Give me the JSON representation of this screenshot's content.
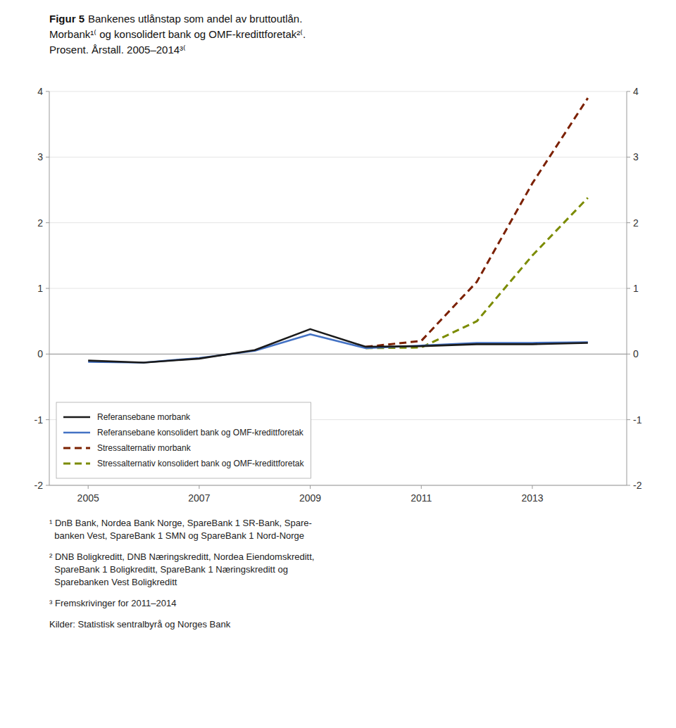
{
  "chart_data": {
    "type": "line",
    "title": "Figur 5",
    "subtitle": [
      "Bankenes utlånstap som andel av bruttoutlån.",
      "Morbank¹⁽ og konsolidert bank og OMF-kredittforetak²⁽.",
      "Prosent. Årstall. 2005–2014³⁽"
    ],
    "x": [
      2005,
      2006,
      2007,
      2008,
      2009,
      2010,
      2011,
      2012,
      2013,
      2014
    ],
    "series": [
      {
        "name": "Referansebane morbank",
        "color": "#1a1a1a",
        "line_style": "solid",
        "values": [
          -0.1,
          -0.13,
          -0.07,
          0.06,
          0.38,
          0.11,
          0.12,
          0.15,
          0.15,
          0.17
        ]
      },
      {
        "name": "Referansebane konsolidert bank og OMF-kredittforetak",
        "color": "#4472c4",
        "line_style": "solid",
        "values": [
          -0.12,
          -0.13,
          -0.06,
          0.05,
          0.3,
          0.09,
          0.13,
          0.17,
          0.17,
          0.18
        ]
      },
      {
        "name": "Stressalternativ morbank",
        "color": "#7B2000",
        "line_style": "dashed",
        "values": [
          null,
          null,
          null,
          null,
          null,
          0.11,
          0.2,
          1.1,
          2.6,
          3.9
        ]
      },
      {
        "name": "Stressalternativ konsolidert bank og OMF-kredittforetak",
        "color": "#7B8B00",
        "line_style": "dashed",
        "values": [
          null,
          null,
          null,
          null,
          null,
          0.09,
          0.1,
          0.5,
          1.5,
          2.38
        ]
      }
    ],
    "xlim": [
      2004.3,
      2014.7
    ],
    "xticks": [
      2005,
      2007,
      2009,
      2011,
      2013
    ],
    "ylim": [
      -2,
      4
    ],
    "yticks": [
      -2,
      -1,
      0,
      1,
      2,
      3,
      4
    ],
    "y2lim": [
      -2,
      4
    ],
    "y2ticks": [
      -2,
      -1,
      0,
      1,
      2,
      3,
      4
    ],
    "grid": true,
    "legend": "lower left",
    "annotations": [
      "¹ DnB Bank, Nordea Bank Norge, SpareBank 1 SR-Bank, Spare-\n  banken Vest, SpareBank 1 SMN og SpareBank 1 Nord-Norge",
      "² DNB Boligkreditt, DNB Næringskreditt, Nordea Eiendomskreditt,\n  SpareBank 1 Boligkreditt, SpareBank 1 Næringskreditt og\n  Sparebanken Vest Boligkreditt",
      "³ Fremskrivinger for 2011–2014",
      "Kilder: Statistisk sentralbyrå og Norges Bank"
    ]
  }
}
